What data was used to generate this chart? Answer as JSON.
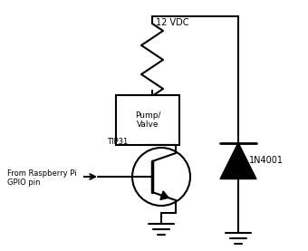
{
  "background_color": "#ffffff",
  "line_color": "#000000",
  "line_width": 1.5,
  "vdc_label": "12 VDC",
  "pump_label": "Pump/\nValve",
  "transistor_label": "TIP31",
  "diode_label": "1N4001",
  "gpio_label": "From Raspberry Pi\nGPIO pin",
  "figsize": [
    3.4,
    2.77
  ],
  "dpi": 100
}
